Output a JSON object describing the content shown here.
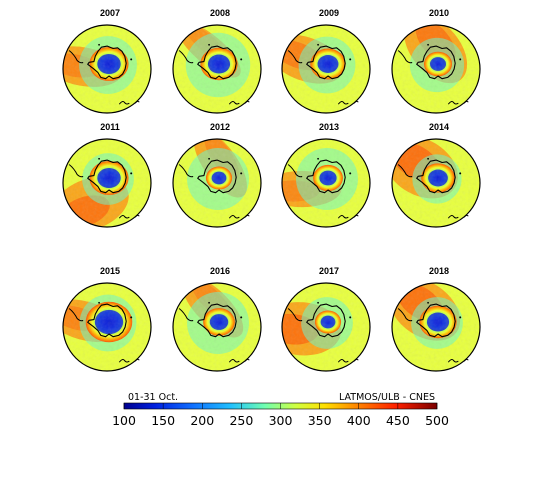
{
  "panels": [
    {
      "year": "2007",
      "hole": 0.95,
      "mid": 0.82,
      "high": 0.55,
      "rot": -10
    },
    {
      "year": "2008",
      "hole": 0.9,
      "mid": 0.95,
      "high": 0.35,
      "rot": 20
    },
    {
      "year": "2009",
      "hole": 0.85,
      "mid": 0.8,
      "high": 0.65,
      "rot": 0
    },
    {
      "year": "2010",
      "hole": 0.65,
      "mid": 0.75,
      "high": 0.75,
      "rot": 30
    },
    {
      "year": "2011",
      "hole": 0.95,
      "mid": 0.7,
      "high": 0.8,
      "rot": -40
    },
    {
      "year": "2012",
      "hole": 0.6,
      "mid": 0.9,
      "high": 0.45,
      "rot": 35
    },
    {
      "year": "2013",
      "hole": 0.7,
      "mid": 0.9,
      "high": 0.5,
      "rot": -20
    },
    {
      "year": "2014",
      "hole": 0.8,
      "mid": 0.65,
      "high": 0.9,
      "rot": 10
    },
    {
      "year": "2015",
      "hole": 1.15,
      "mid": 0.8,
      "high": 0.55,
      "rot": -5
    },
    {
      "year": "2016",
      "hole": 0.75,
      "mid": 0.9,
      "high": 0.45,
      "rot": 25
    },
    {
      "year": "2017",
      "hole": 0.6,
      "mid": 0.7,
      "high": 0.85,
      "rot": -15
    },
    {
      "year": "2018",
      "hole": 0.9,
      "mid": 0.7,
      "high": 0.85,
      "rot": 15
    }
  ],
  "colorbar": {
    "left_label": "01-31 Oct.",
    "right_label": "LATMOS/ULB - CNES",
    "ticks": [
      "100",
      "150",
      "200",
      "250",
      "300",
      "350",
      "400",
      "450",
      "500"
    ],
    "range": [
      100,
      500
    ],
    "colors": [
      "#0000b0",
      "#1060ff",
      "#30d0ff",
      "#a0ff60",
      "#ffff00",
      "#ff9000",
      "#ff2000",
      "#800000"
    ]
  }
}
